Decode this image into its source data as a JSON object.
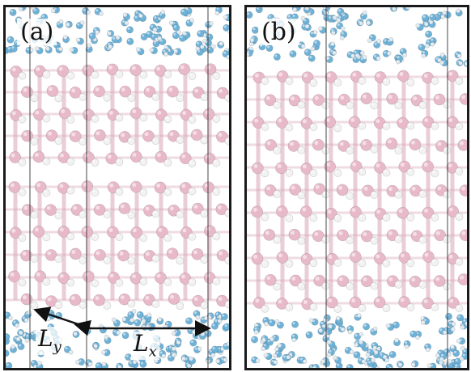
{
  "panels": [
    {
      "label": "(a)"
    },
    {
      "label": "(b)"
    }
  ],
  "dimensions": {
    "ly": {
      "symbol": "L",
      "subscript": "y"
    },
    "lx": {
      "symbol": "L",
      "subscript": "x"
    }
  },
  "colors": {
    "boron_atom": "#e8b9c8",
    "boron_bond": "#d9a7b7",
    "hydrogen_atom": "#f2f2f2",
    "water_oxygen": "#6fb2d8",
    "water_hydrogen": "#dfe9f0",
    "frame": "#1a1a1a"
  }
}
